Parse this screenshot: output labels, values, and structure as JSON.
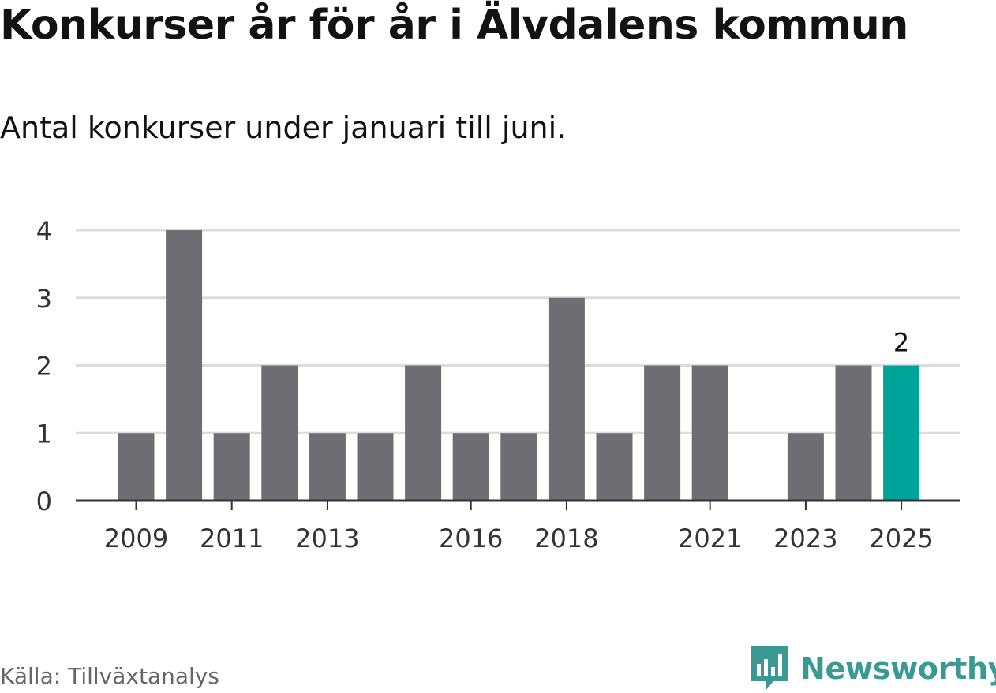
{
  "title": "Konkurser år för år i Älvdalens kommun",
  "subtitle": "Antal konkurser under januari till juni.",
  "source": "Källa: Tillväxtanalys",
  "brand": "Newsworthy",
  "colors": {
    "bar": "#6e6d72",
    "highlight": "#00a399",
    "grid": "#dcdcdc",
    "axis": "#333333",
    "text": "#333333",
    "brand": "#3a9a93"
  },
  "chart_data": {
    "type": "bar",
    "categories": [
      "2009",
      "2010",
      "2011",
      "2012",
      "2013",
      "2014",
      "2015",
      "2016",
      "2017",
      "2018",
      "2019",
      "2020",
      "2021",
      "2022",
      "2023",
      "2024",
      "2025"
    ],
    "values": [
      1,
      4,
      1,
      2,
      1,
      1,
      2,
      1,
      1,
      3,
      1,
      2,
      2,
      0,
      1,
      2,
      2
    ],
    "x_tick_labels": [
      "2009",
      "2011",
      "2013",
      "2016",
      "2018",
      "2021",
      "2023",
      "2025"
    ],
    "y_ticks": [
      0,
      1,
      2,
      3,
      4
    ],
    "ylim": [
      0,
      4
    ],
    "highlight_category": "2025",
    "highlight_label": "2",
    "grid": true,
    "xlabel": "",
    "ylabel": ""
  }
}
